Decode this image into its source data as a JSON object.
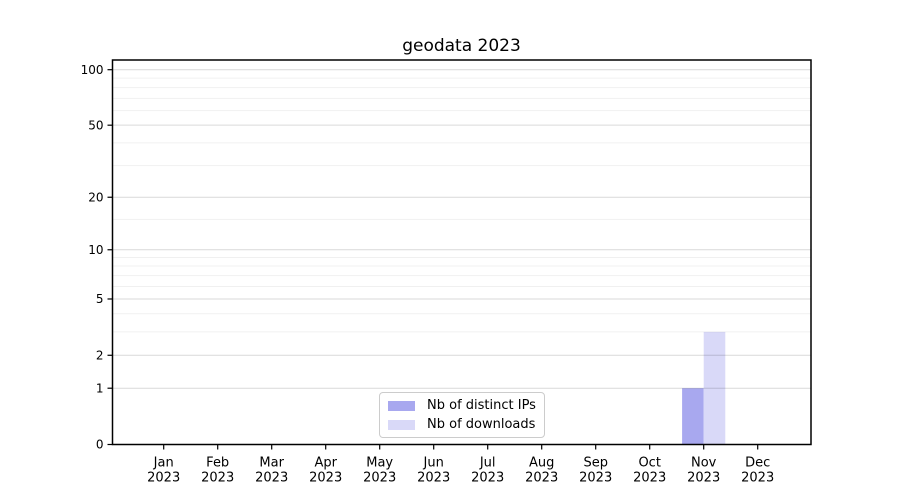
{
  "chart_data": {
    "type": "bar",
    "title": "geodata 2023",
    "categories": [
      "Jan",
      "Feb",
      "Mar",
      "Apr",
      "May",
      "Jun",
      "Jul",
      "Aug",
      "Sep",
      "Oct",
      "Nov",
      "Dec"
    ],
    "category_sub": "2023",
    "series": [
      {
        "name": "Nb of distinct IPs",
        "color": "#a8a8ef",
        "values": [
          0,
          0,
          0,
          0,
          0,
          0,
          0,
          0,
          0,
          0,
          1,
          0
        ]
      },
      {
        "name": "Nb of downloads",
        "color": "#d9d9f8",
        "values": [
          0,
          0,
          0,
          0,
          0,
          0,
          0,
          0,
          0,
          0,
          3,
          0
        ]
      }
    ],
    "xlabel": "",
    "ylabel": "",
    "yscale": "log1p",
    "ytick_labels": [
      "0",
      "1",
      "2",
      "5",
      "10",
      "20",
      "50",
      "100"
    ],
    "yticks": [
      0,
      1,
      2,
      5,
      10,
      20,
      50,
      100
    ],
    "minor_yticks": [
      3,
      4,
      6,
      7,
      8,
      9,
      15,
      30,
      40,
      60,
      70,
      80,
      90
    ],
    "ylim": [
      0,
      114
    ],
    "grid": true,
    "legend_position": "lower center"
  }
}
